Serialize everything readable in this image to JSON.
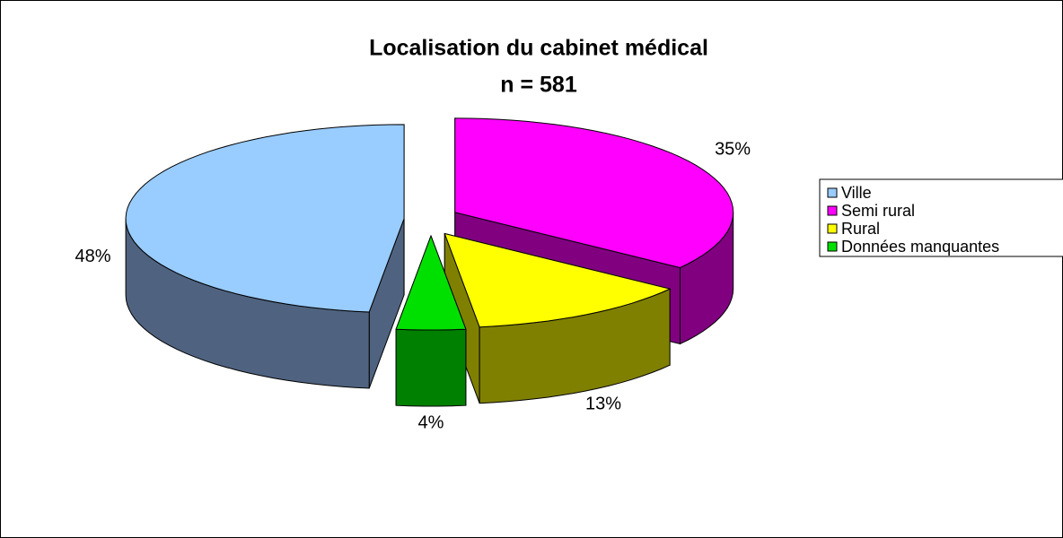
{
  "chart_data": {
    "type": "pie3d",
    "title": "Localisation du cabinet médical",
    "subtitle": "n = 581",
    "categories": [
      "Ville",
      "Semi rural",
      "Rural",
      "Données manquantes"
    ],
    "values": [
      48,
      35,
      13,
      4
    ],
    "value_labels": [
      "48%",
      "35%",
      "13%",
      "4%"
    ],
    "colors": [
      "#99ccff",
      "#ff00ff",
      "#ffff00",
      "#00e000"
    ],
    "side_colors": [
      "#4f6380",
      "#800080",
      "#808000",
      "#008000"
    ],
    "legend": "right"
  }
}
